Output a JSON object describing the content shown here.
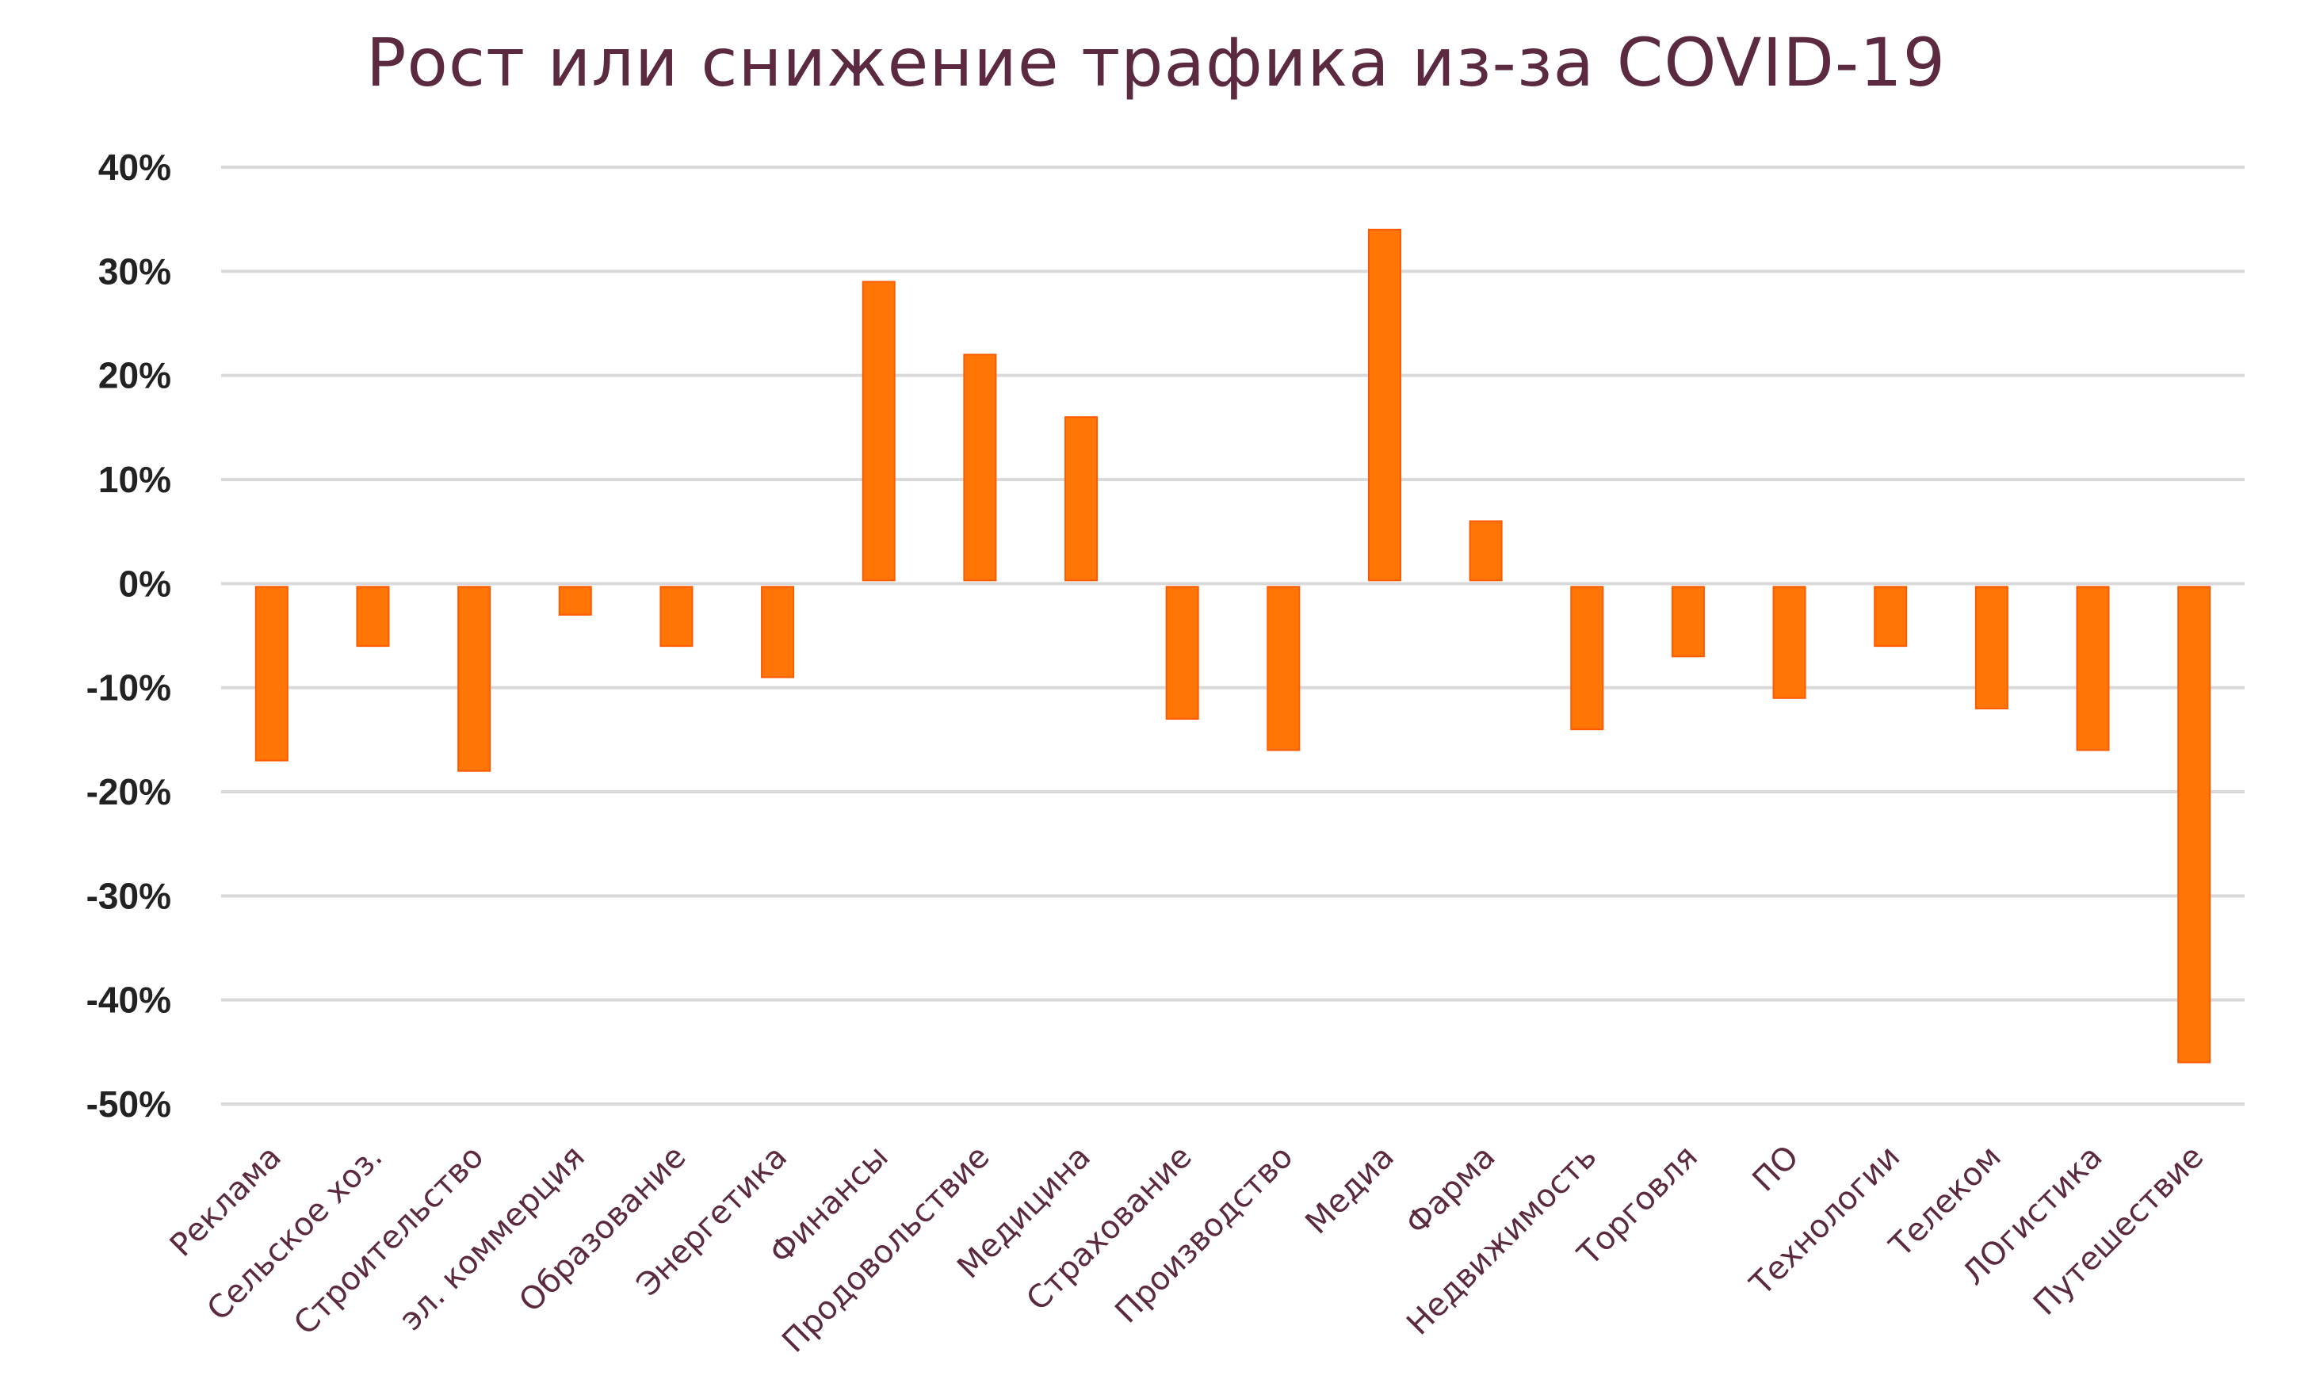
{
  "chart_data": {
    "type": "bar",
    "title": "Рост или снижение трафика из-за COVID-19",
    "xlabel": "",
    "ylabel": "",
    "ylim": [
      -50,
      40
    ],
    "yticks": [
      40,
      30,
      20,
      10,
      0,
      -10,
      -20,
      -30,
      -40,
      -50
    ],
    "ytick_labels": [
      "40%",
      "30%",
      "20%",
      "10%",
      "0%",
      "-10%",
      "-20%",
      "-30%",
      "-40%",
      "-50%"
    ],
    "grid": true,
    "bar_color": "#ff7607",
    "categories": [
      "Реклама",
      "Сельское хоз.",
      "Строительство",
      "эл. коммерция",
      "Образование",
      "Энергетика",
      "Финансы",
      "Продовольствие",
      "Медицина",
      "Страхование",
      "Производство",
      "Медиа",
      "Фарма",
      "Недвижимость",
      "Торговля",
      "ПО",
      "Технологии",
      "Телеком",
      "ЛОгистика",
      "Путешествие"
    ],
    "values": [
      -17,
      -6,
      -18,
      -3,
      -6,
      -9,
      29,
      22,
      16,
      -13,
      -16,
      34,
      6,
      -14,
      -7,
      -11,
      -6,
      -12,
      -16,
      -46
    ]
  }
}
